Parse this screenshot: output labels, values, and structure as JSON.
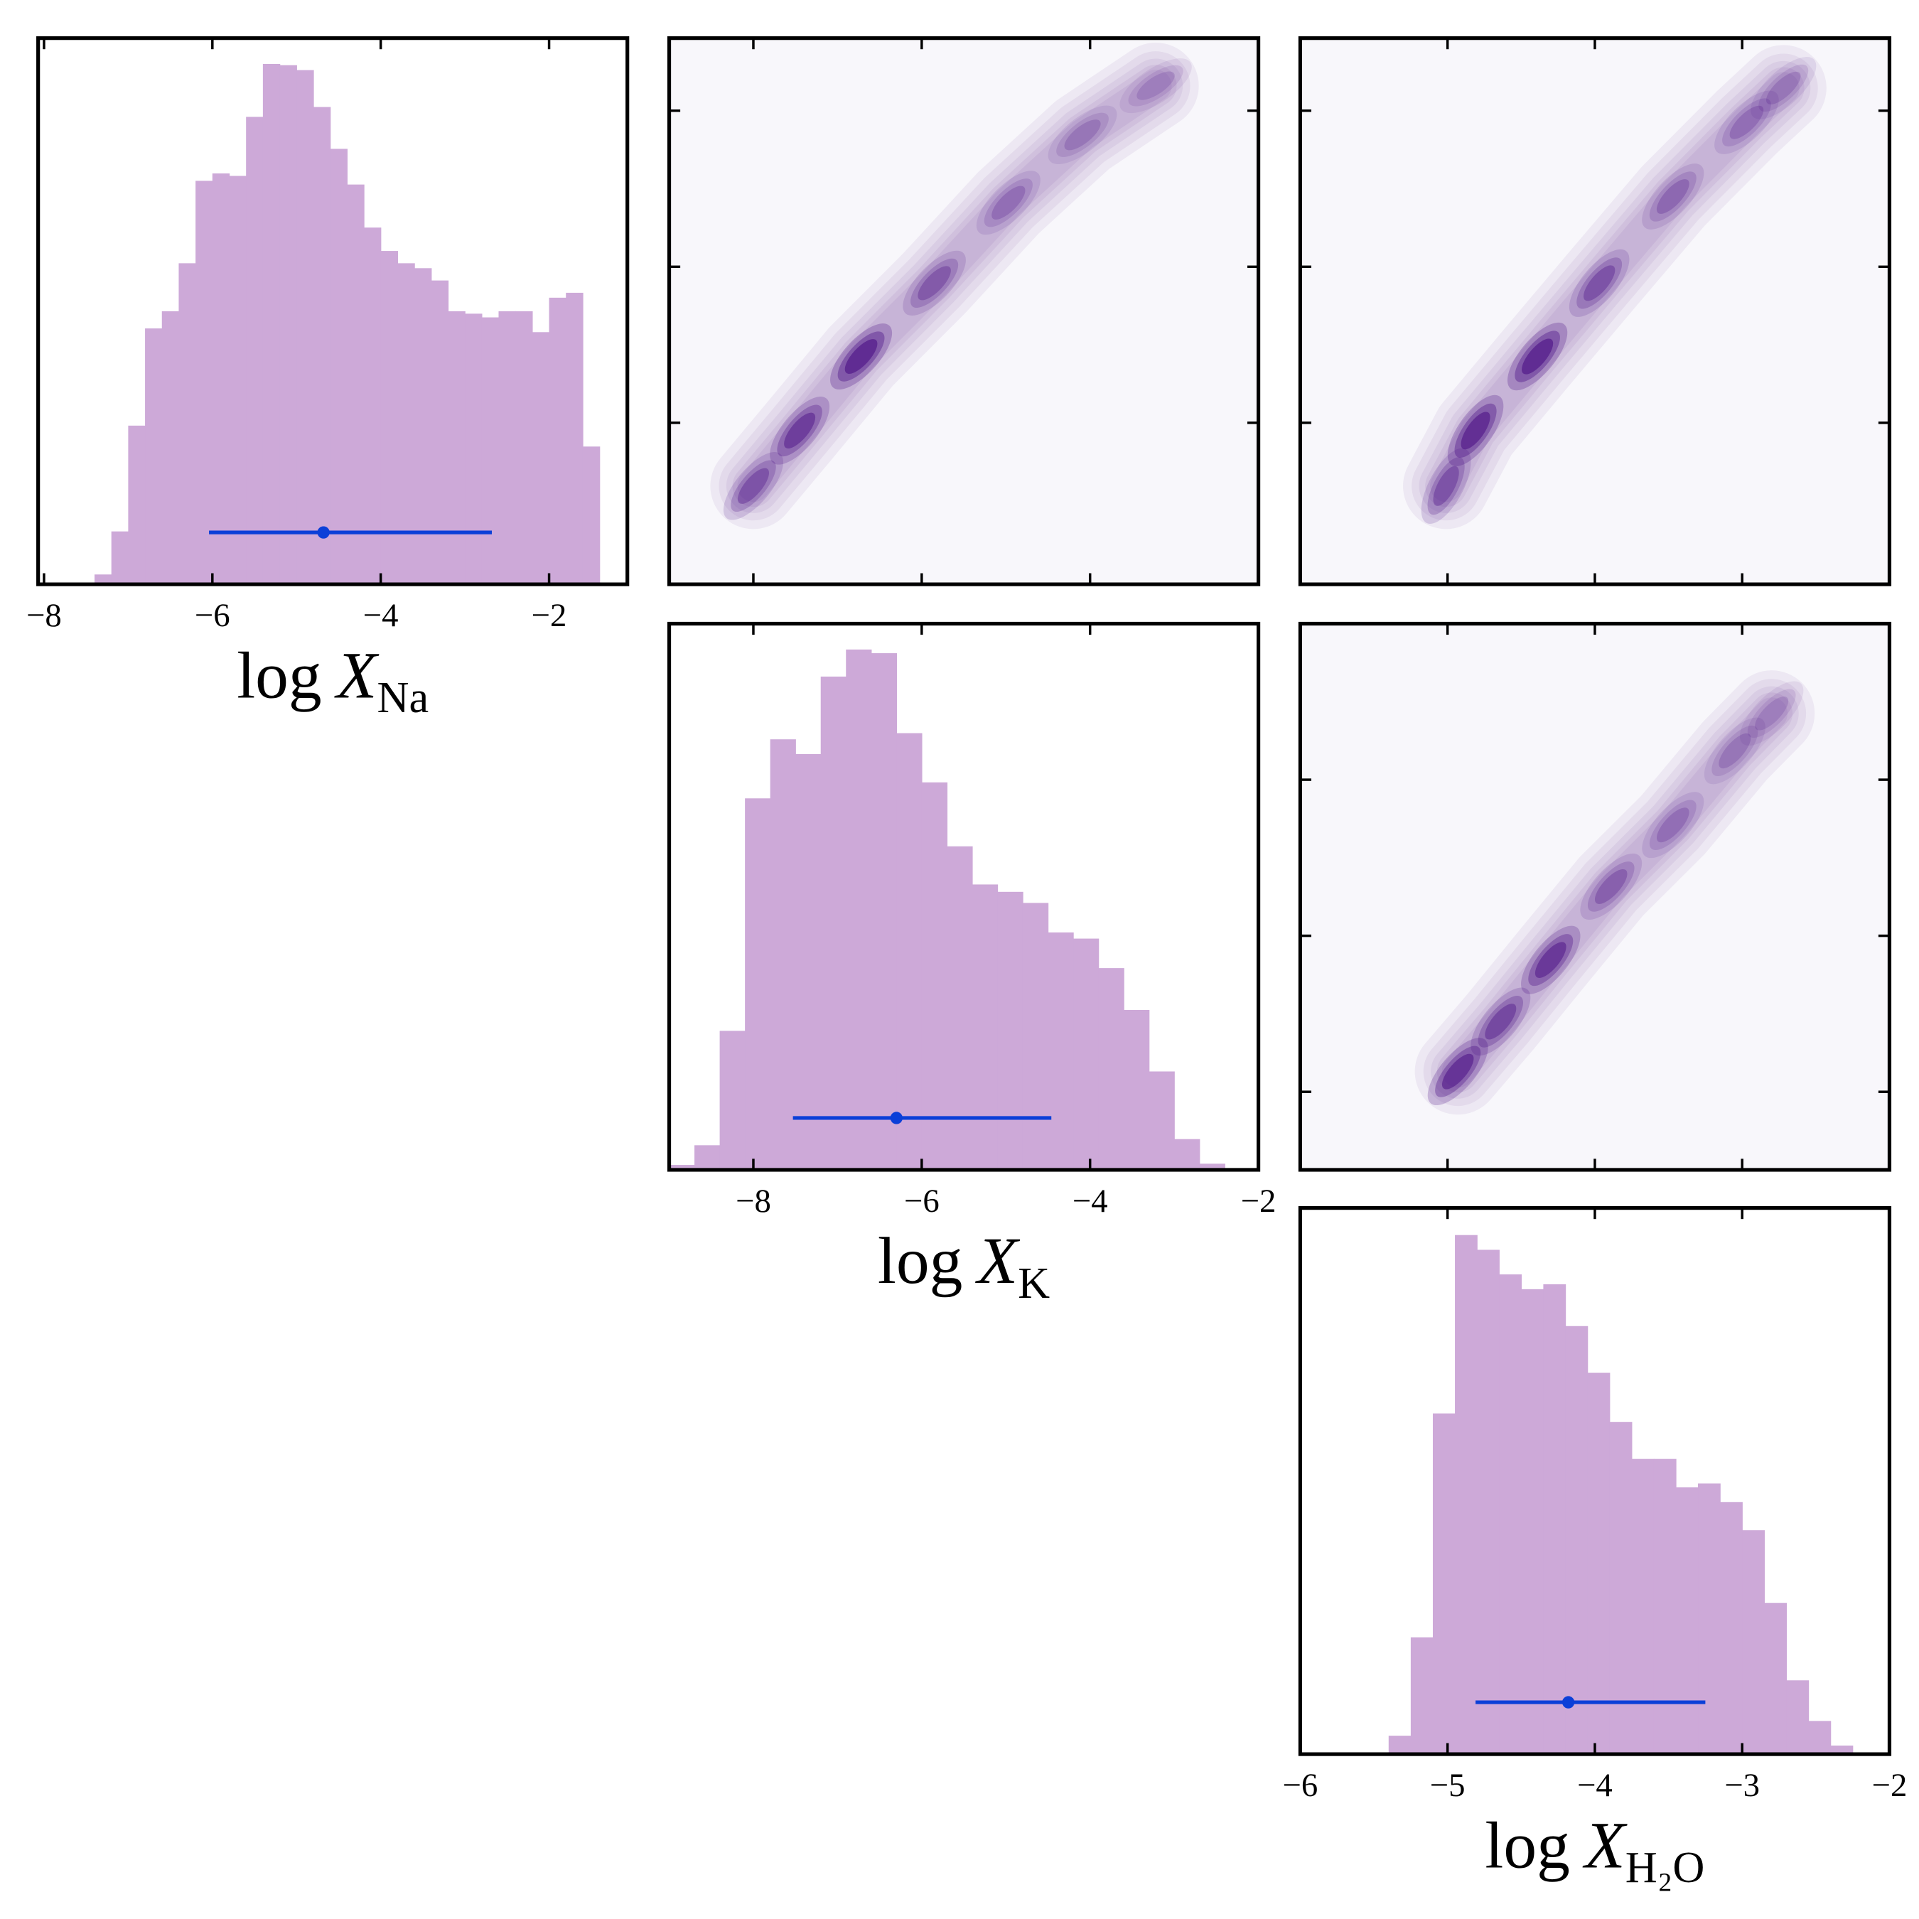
{
  "chart_data": [
    {
      "type": "histogram",
      "color": "#cda9d8",
      "errorbar_color": "#0b3fd8",
      "xlim": [
        -8.07,
        -1.07
      ],
      "ylim": [
        0,
        444
      ],
      "xticks": [
        {
          "value": -8,
          "label": "−8"
        },
        {
          "value": -6,
          "label": "−6"
        },
        {
          "value": -4,
          "label": "−4"
        },
        {
          "value": -2,
          "label": "−2"
        }
      ],
      "xlabel_main": "log",
      "xlabel_var": "X",
      "xlabel_sub": "Na",
      "bins": [
        -7.4,
        -7.2,
        -7.0,
        -6.8,
        -6.6,
        -6.4,
        -6.2,
        -6.0,
        -5.8,
        -5.6,
        -5.4,
        -5.2,
        -5.0,
        -4.8,
        -4.6,
        -4.4,
        -4.2,
        -4.0,
        -3.8,
        -3.6,
        -3.4,
        -3.2,
        -3.0,
        -2.8,
        -2.6,
        -2.4,
        -2.2,
        -2.0,
        -1.8,
        -1.6,
        -1.4
      ],
      "counts": [
        8,
        43,
        129,
        208,
        222,
        261,
        328,
        334,
        332,
        380,
        423,
        422,
        418,
        388,
        354,
        325,
        290,
        271,
        261,
        257,
        247,
        222,
        220,
        217,
        222,
        222,
        205,
        233,
        237,
        112
      ],
      "median": -4.68,
      "interval": [
        -6.04,
        -2.68
      ]
    },
    {
      "type": "density",
      "color": "#3f007d",
      "background": "#f8f7fb",
      "xlim": [
        -9,
        -2
      ],
      "ylim": [
        -8.07,
        -1.07
      ],
      "xticks": [
        -8,
        -6,
        -4,
        -2
      ],
      "yticks": [
        -6,
        -4,
        -2
      ],
      "ridge": {
        "x": [
          -8.0,
          -7.45,
          -6.72,
          -5.85,
          -4.97,
          -4.09,
          -3.22
        ],
        "y": [
          -6.81,
          -6.1,
          -5.15,
          -4.21,
          -3.18,
          -2.31,
          -1.68
        ],
        "density": [
          0.6,
          0.8,
          1.0,
          0.55,
          0.4,
          0.35,
          0.3
        ]
      }
    },
    {
      "type": "density",
      "color": "#3f007d",
      "background": "#f8f7fb",
      "xlim": [
        -6,
        -2
      ],
      "ylim": [
        -8.07,
        -1.07
      ],
      "xticks": [
        -5,
        -4,
        -3
      ],
      "yticks": [
        -6,
        -4,
        -2
      ],
      "ridge": {
        "x": [
          -5.01,
          -4.81,
          -4.39,
          -3.97,
          -3.47,
          -2.97,
          -2.72
        ],
        "y": [
          -6.81,
          -6.1,
          -5.15,
          -4.21,
          -3.1,
          -2.15,
          -1.71
        ],
        "density": [
          0.6,
          0.95,
          1.0,
          0.6,
          0.45,
          0.4,
          0.35
        ]
      }
    },
    {
      "type": "histogram",
      "color": "#cda9d8",
      "errorbar_color": "#0b3fd8",
      "xlim": [
        -9,
        -2
      ],
      "ylim": [
        0,
        444
      ],
      "xticks": [
        {
          "value": -8,
          "label": "−8"
        },
        {
          "value": -6,
          "label": "−6"
        },
        {
          "value": -4,
          "label": "−4"
        },
        {
          "value": -2,
          "label": "−2"
        }
      ],
      "xlabel_main": "log",
      "xlabel_var": "X",
      "xlabel_sub": "K",
      "bins": [
        -9.0,
        -8.7,
        -8.4,
        -8.1,
        -7.8,
        -7.5,
        -7.2,
        -6.9,
        -6.6,
        -6.3,
        -6.0,
        -5.7,
        -5.4,
        -5.1,
        -4.8,
        -4.5,
        -4.2,
        -3.9,
        -3.6,
        -3.3,
        -3.0,
        -2.7,
        -2.4
      ],
      "counts": [
        4,
        20,
        113,
        302,
        350,
        338,
        401,
        423,
        420,
        355,
        315,
        263,
        232,
        226,
        217,
        193,
        188,
        164,
        130,
        80,
        25,
        5
      ],
      "median": -6.3,
      "interval": [
        -7.53,
        -4.46
      ]
    },
    {
      "type": "density",
      "color": "#3f007d",
      "background": "#f8f7fb",
      "xlim": [
        -6,
        -2
      ],
      "ylim": [
        -9,
        -2
      ],
      "xticks": [
        -5,
        -4,
        -3
      ],
      "yticks": [
        -8,
        -6,
        -4
      ],
      "ridge": {
        "x": [
          -4.93,
          -4.64,
          -4.3,
          -3.89,
          -3.47,
          -3.05,
          -2.8
        ],
        "y": [
          -7.74,
          -7.1,
          -6.31,
          -5.37,
          -4.58,
          -3.63,
          -3.15
        ],
        "density": [
          0.9,
          0.7,
          0.85,
          0.5,
          0.4,
          0.35,
          0.3
        ]
      }
    },
    {
      "type": "histogram",
      "color": "#cda9d8",
      "errorbar_color": "#0b3fd8",
      "xlim": [
        -6,
        -2
      ],
      "ylim": [
        0,
        444
      ],
      "xticks": [
        {
          "value": -6,
          "label": "−6"
        },
        {
          "value": -5,
          "label": "−5"
        },
        {
          "value": -4,
          "label": "−4"
        },
        {
          "value": -3,
          "label": "−3"
        },
        {
          "value": -2,
          "label": "−2"
        }
      ],
      "xlabel_main": "log",
      "xlabel_var": "X",
      "xlabel_sub": "H₂O",
      "bins": [
        -5.4,
        -5.25,
        -5.1,
        -4.95,
        -4.8,
        -4.65,
        -4.5,
        -4.35,
        -4.2,
        -4.05,
        -3.9,
        -3.75,
        -3.6,
        -3.45,
        -3.3,
        -3.15,
        -3.0,
        -2.85,
        -2.7,
        -2.55,
        -2.4,
        -2.25
      ],
      "counts": [
        15,
        95,
        277,
        422,
        410,
        390,
        378,
        382,
        348,
        310,
        270,
        240,
        240,
        217,
        220,
        205,
        182,
        123,
        60,
        27,
        7
      ],
      "median": -4.18,
      "interval": [
        -4.81,
        -3.25
      ]
    }
  ]
}
